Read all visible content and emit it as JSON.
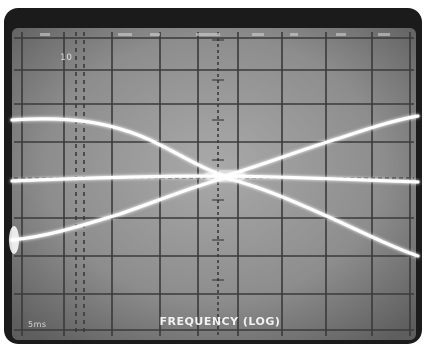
{
  "photo": {
    "subject": "oscilloscope-screen-photo",
    "graticule": "grid",
    "trace_color": "#ffffff",
    "screen_color": "#8a8a8a",
    "bezel_color": "#1a1a1a"
  },
  "labels": {
    "x_axis": "FREQUENCY (LOG)",
    "scale_marker": "5ms",
    "db_marker": "10"
  }
}
